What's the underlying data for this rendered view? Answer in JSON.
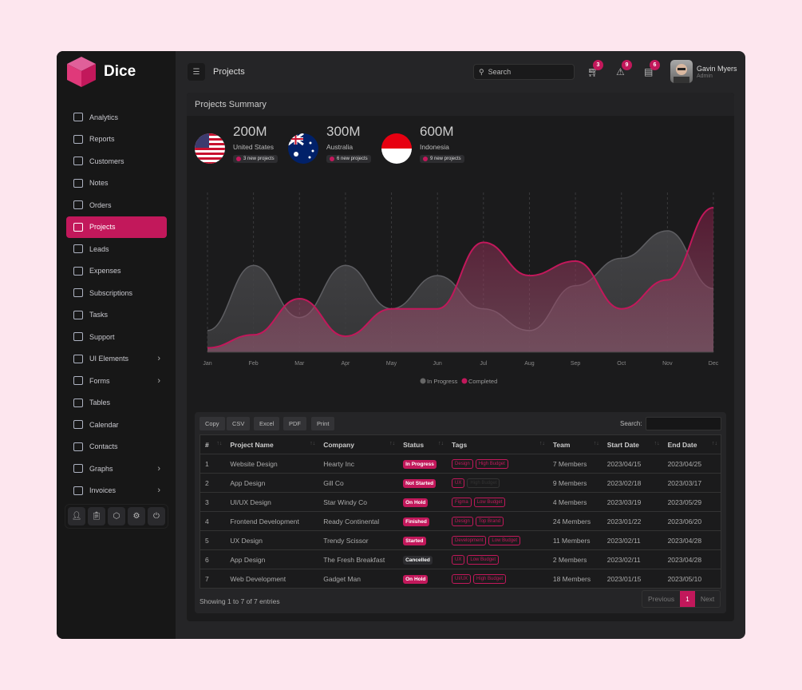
{
  "app": {
    "name": "Dice"
  },
  "header": {
    "title": "Projects",
    "search_placeholder": "Search",
    "cart_count": "3",
    "alert_count": "9",
    "docs_count": "6",
    "user_name": "Gavin Myers",
    "user_role": "Admin"
  },
  "sidebar": {
    "items": [
      {
        "label": "Analytics",
        "icon": "laptop-icon"
      },
      {
        "label": "Reports",
        "icon": "bar-chart-icon"
      },
      {
        "label": "Customers",
        "icon": "globe-icon"
      },
      {
        "label": "Notes",
        "icon": "note-icon"
      },
      {
        "label": "Orders",
        "icon": "store-icon"
      },
      {
        "label": "Projects",
        "icon": "layout-icon",
        "active": true
      },
      {
        "label": "Leads",
        "icon": "check-circle-icon"
      },
      {
        "label": "Expenses",
        "icon": "send-icon"
      },
      {
        "label": "Subscriptions",
        "icon": "mouse-icon"
      },
      {
        "label": "Tasks",
        "icon": "clipboard-icon"
      },
      {
        "label": "Support",
        "icon": "headset-icon"
      },
      {
        "label": "UI Elements",
        "icon": "ui-icon",
        "submenu": true
      },
      {
        "label": "Forms",
        "icon": "forms-icon",
        "submenu": true
      },
      {
        "label": "Tables",
        "icon": "table-icon"
      },
      {
        "label": "Calendar",
        "icon": "calendar-icon"
      },
      {
        "label": "Contacts",
        "icon": "folder-icon"
      },
      {
        "label": "Graphs",
        "icon": "monitor-icon",
        "submenu": true
      },
      {
        "label": "Invoices",
        "icon": "invoice-icon",
        "submenu": true
      }
    ],
    "quick": [
      "user-icon",
      "clipboard-icon",
      "box-icon",
      "gear-icon",
      "power-icon"
    ]
  },
  "summary": {
    "title": "Projects Summary",
    "stats": [
      {
        "value": "200M",
        "country": "United States",
        "note": "3 new projects"
      },
      {
        "value": "300M",
        "country": "Australia",
        "note": "6 new projects"
      },
      {
        "value": "600M",
        "country": "Indonesia",
        "note": "9 new projects"
      }
    ]
  },
  "chart_data": {
    "type": "area",
    "categories": [
      "Jan",
      "Feb",
      "Mar",
      "Apr",
      "May",
      "Jun",
      "Jul",
      "Aug",
      "Sep",
      "Oct",
      "Nov",
      "Dec"
    ],
    "series": [
      {
        "name": "In Progress",
        "color": "#5a5a5e",
        "values": [
          15,
          60,
          24,
          60,
          30,
          53,
          30,
          15,
          46,
          65,
          84,
          44
        ]
      },
      {
        "name": "Completed",
        "color": "#c2185b",
        "values": [
          3,
          12,
          37,
          11,
          30,
          30,
          76,
          53,
          63,
          30,
          50,
          100
        ]
      }
    ],
    "ylim": [
      0,
      105
    ],
    "grid": "vertical dashed",
    "legend": "bottom"
  },
  "table": {
    "buttons": [
      "Copy",
      "CSV",
      "Excel",
      "PDF",
      "Print"
    ],
    "search_label": "Search:",
    "columns": [
      "#",
      "Project Name",
      "Company",
      "Status",
      "Tags",
      "Team",
      "Start Date",
      "End Date"
    ],
    "rows": [
      [
        "1",
        "Website Design",
        "Hearty Inc",
        "In Progress",
        [
          "Design",
          "High Budget"
        ],
        "7 Members",
        "2023/04/15",
        "2023/04/25"
      ],
      [
        "2",
        "App Design",
        "Gill Co",
        "Not Started",
        [
          "UX",
          "High Budget"
        ],
        "9 Members",
        "2023/02/18",
        "2023/03/17"
      ],
      [
        "3",
        "UI/UX Design",
        "Star Windy Co",
        "On Hold",
        [
          "Figma",
          "Low Budget"
        ],
        "4 Members",
        "2023/03/19",
        "2023/05/29"
      ],
      [
        "4",
        "Frontend Development",
        "Ready Continental",
        "Finished",
        [
          "Design",
          "Top Brand"
        ],
        "24 Members",
        "2023/01/22",
        "2023/06/20"
      ],
      [
        "5",
        "UX Design",
        "Trendy Scissor",
        "Started",
        [
          "Development",
          "Low Budget"
        ],
        "11 Members",
        "2023/02/11",
        "2023/04/28"
      ],
      [
        "6",
        "App Design",
        "The Fresh Breakfast",
        "Cancelled",
        [
          "UX",
          "Low Budget"
        ],
        "2 Members",
        "2023/02/11",
        "2023/04/28"
      ],
      [
        "7",
        "Web Development",
        "Gadget Man",
        "On Hold",
        [
          "UI/UX",
          "High Budget"
        ],
        "18 Members",
        "2023/01/15",
        "2023/05/10"
      ]
    ],
    "showing": "Showing 1 to 7 of 7 entries",
    "prev": "Previous",
    "page": "1",
    "next": "Next"
  }
}
